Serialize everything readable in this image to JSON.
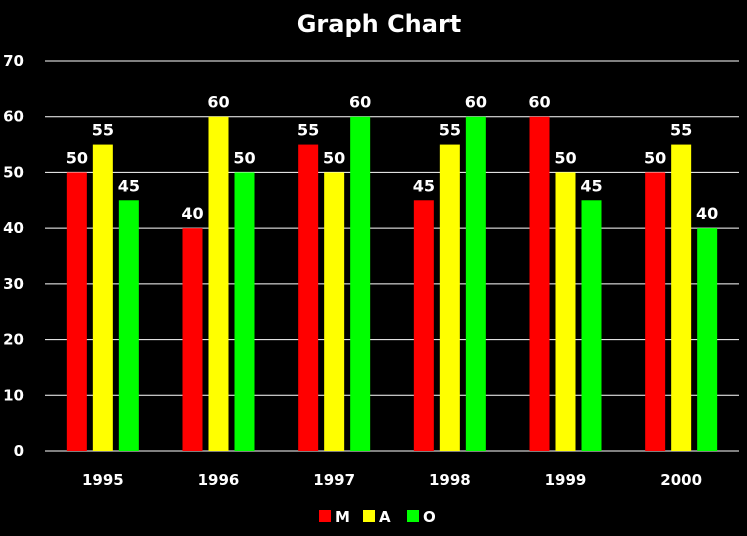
{
  "chart_data": {
    "type": "bar",
    "title": "Graph Chart",
    "categories": [
      "1995",
      "1996",
      "1997",
      "1998",
      "1999",
      "2000"
    ],
    "series": [
      {
        "name": "M",
        "color": "#ff0000",
        "values": [
          50,
          40,
          55,
          45,
          60,
          50
        ]
      },
      {
        "name": "A",
        "color": "#ffff00",
        "values": [
          55,
          60,
          50,
          55,
          50,
          55
        ]
      },
      {
        "name": "O",
        "color": "#00ff00",
        "values": [
          45,
          50,
          60,
          60,
          45,
          40
        ]
      }
    ],
    "ylim": [
      0,
      70
    ],
    "yticks": [
      0,
      10,
      20,
      30,
      40,
      50,
      60,
      70
    ],
    "grid": true,
    "legend_position": "bottom-center",
    "background_color": "#000000",
    "grid_color": "#ffffff",
    "text_color": "#ffffff"
  }
}
